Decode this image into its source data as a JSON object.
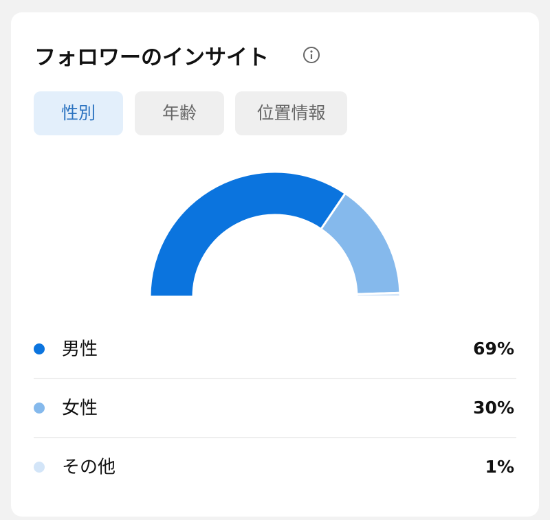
{
  "tabs": [
    "性別",
    "年齢",
    "位置情報"
  ],
  "active_tab": 0,
  "chart_data": {
    "type": "pie",
    "title": "フォロワーのインサイト",
    "categories": [
      "男性",
      "女性",
      "その他"
    ],
    "values": [
      69,
      30,
      1
    ],
    "value_labels": [
      "69%",
      "30%",
      "1%"
    ],
    "colors": [
      "#0b74de",
      "#85b9ec",
      "#d3e5f8"
    ]
  }
}
